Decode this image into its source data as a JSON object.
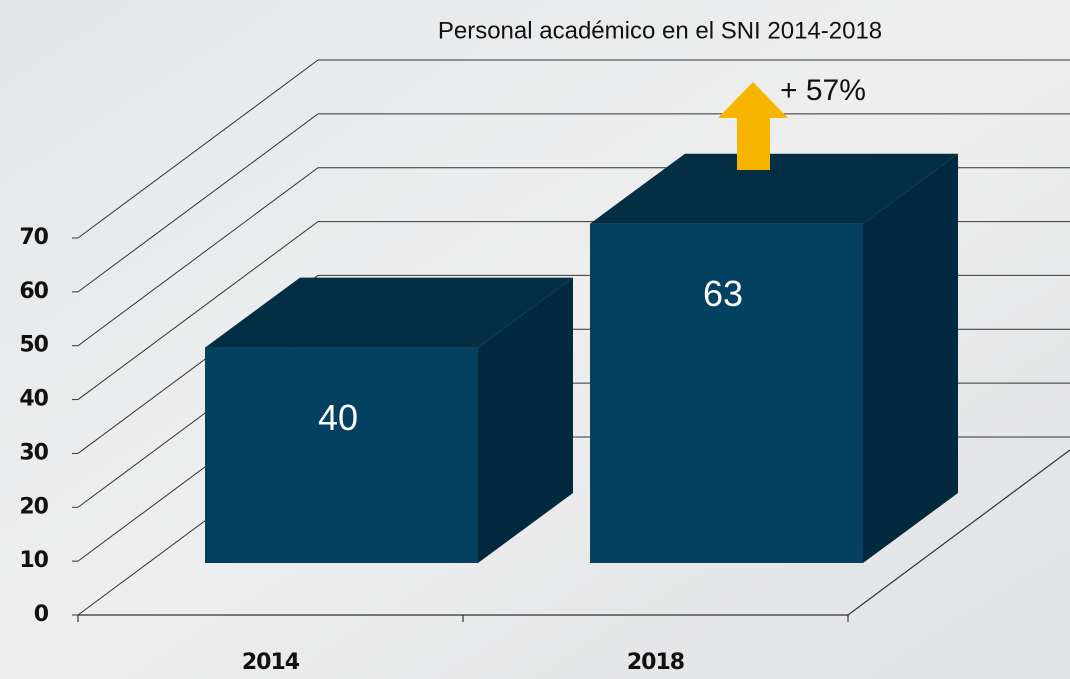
{
  "chart_data": {
    "type": "bar3d",
    "title": "Personal académico en el SNI 2014-2018",
    "categories": [
      "2014",
      "2018"
    ],
    "values": [
      40,
      63
    ],
    "color": "#04405f",
    "ylim": [
      0,
      70
    ],
    "yticks": [
      0,
      10,
      20,
      30,
      40,
      50,
      60,
      70
    ],
    "grid": true,
    "annotation": "+ 57%"
  }
}
